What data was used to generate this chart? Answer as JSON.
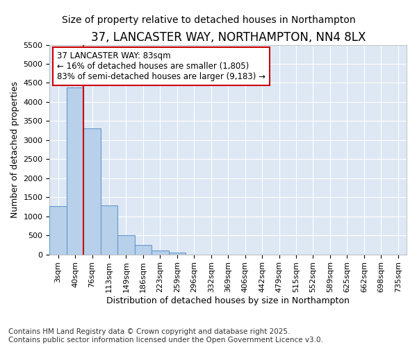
{
  "title": "37, LANCASTER WAY, NORTHAMPTON, NN4 8LX",
  "subtitle": "Size of property relative to detached houses in Northampton",
  "xlabel": "Distribution of detached houses by size in Northampton",
  "ylabel": "Number of detached properties",
  "bar_color": "#b8d0ea",
  "bar_edgecolor": "#6699cc",
  "background_color": "#dde8f4",
  "fig_background": "#ffffff",
  "categories": [
    "3sqm",
    "40sqm",
    "76sqm",
    "113sqm",
    "149sqm",
    "186sqm",
    "223sqm",
    "259sqm",
    "296sqm",
    "332sqm",
    "369sqm",
    "406sqm",
    "442sqm",
    "479sqm",
    "515sqm",
    "552sqm",
    "589sqm",
    "625sqm",
    "662sqm",
    "698sqm",
    "735sqm"
  ],
  "values": [
    1275,
    4375,
    3300,
    1290,
    510,
    240,
    105,
    55,
    0,
    0,
    0,
    0,
    0,
    0,
    0,
    0,
    0,
    0,
    0,
    0,
    0
  ],
  "ylim": [
    0,
    5500
  ],
  "yticks": [
    0,
    500,
    1000,
    1500,
    2000,
    2500,
    3000,
    3500,
    4000,
    4500,
    5000,
    5500
  ],
  "vline_x": 1.5,
  "vline_color": "#cc0000",
  "annotation_line1": "37 LANCASTER WAY: 83sqm",
  "annotation_line2": "← 16% of detached houses are smaller (1,805)",
  "annotation_line3": "83% of semi-detached houses are larger (9,183) →",
  "annotation_box_edgecolor": "#cc0000",
  "footer_line1": "Contains HM Land Registry data © Crown copyright and database right 2025.",
  "footer_line2": "Contains public sector information licensed under the Open Government Licence v3.0.",
  "grid_color": "#ffffff",
  "title_fontsize": 12,
  "subtitle_fontsize": 10,
  "xlabel_fontsize": 9,
  "ylabel_fontsize": 9,
  "tick_fontsize": 8,
  "annotation_fontsize": 8.5,
  "footer_fontsize": 7.5
}
